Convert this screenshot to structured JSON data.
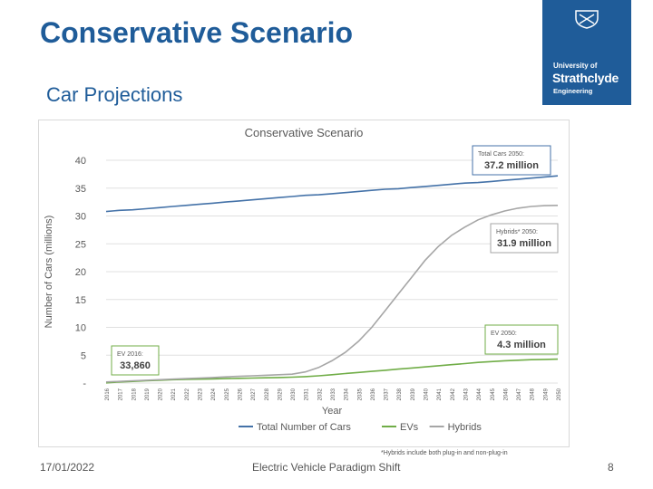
{
  "slide": {
    "title": "Conservative Scenario",
    "subtitle": "Car Projections",
    "footer_date": "17/01/2022",
    "footer_center": "Electric Vehicle Paradigm Shift",
    "page_number": "8",
    "footnote": "*Hybrids include both plug-in and non-plug-in"
  },
  "logo": {
    "line1": "University of",
    "line2": "Strathclyde",
    "line3": "Engineering"
  },
  "colors": {
    "brand": "#1f5c99",
    "total": "#4472a8",
    "evs": "#70ad47",
    "hybrids": "#a6a6a6",
    "annotation_border": "#7f7f7f"
  },
  "chart_data": {
    "type": "line",
    "title": "Conservative Scenario",
    "xlabel": "Year",
    "ylabel": "Number of Cars (millions)",
    "ylim": [
      0,
      40
    ],
    "yticks": [
      "-",
      "5",
      "10",
      "15",
      "20",
      "25",
      "30",
      "35",
      "40"
    ],
    "categories": [
      "2016",
      "2017",
      "2018",
      "2019",
      "2020",
      "2021",
      "2022",
      "2023",
      "2024",
      "2025",
      "2026",
      "2027",
      "2028",
      "2029",
      "2030",
      "2031",
      "2032",
      "2033",
      "2034",
      "2035",
      "2036",
      "2037",
      "2038",
      "2039",
      "2040",
      "2041",
      "2042",
      "2043",
      "2044",
      "2045",
      "2046",
      "2047",
      "2048",
      "2049",
      "2050"
    ],
    "series": [
      {
        "name": "Total Number of Cars",
        "color_key": "total",
        "values": [
          30.8,
          31.0,
          31.1,
          31.3,
          31.5,
          31.7,
          31.9,
          32.1,
          32.3,
          32.5,
          32.7,
          32.9,
          33.1,
          33.3,
          33.5,
          33.7,
          33.8,
          34.0,
          34.2,
          34.4,
          34.6,
          34.8,
          34.9,
          35.1,
          35.3,
          35.5,
          35.7,
          35.9,
          36.0,
          36.2,
          36.4,
          36.6,
          36.8,
          37.0,
          37.2
        ]
      },
      {
        "name": "EVs",
        "color_key": "evs",
        "values": [
          0.03,
          0.2,
          0.3,
          0.4,
          0.5,
          0.6,
          0.65,
          0.7,
          0.75,
          0.8,
          0.85,
          0.9,
          0.95,
          1.0,
          1.05,
          1.15,
          1.3,
          1.5,
          1.7,
          1.9,
          2.1,
          2.3,
          2.5,
          2.7,
          2.9,
          3.1,
          3.3,
          3.5,
          3.7,
          3.85,
          4.0,
          4.1,
          4.2,
          4.25,
          4.3
        ]
      },
      {
        "name": "Hybrids",
        "color_key": "hybrids",
        "values": [
          0.2,
          0.3,
          0.4,
          0.5,
          0.6,
          0.7,
          0.8,
          0.9,
          1.0,
          1.1,
          1.2,
          1.3,
          1.4,
          1.5,
          1.6,
          2.0,
          2.8,
          4.0,
          5.5,
          7.5,
          10.0,
          13.0,
          16.0,
          19.0,
          22.0,
          24.5,
          26.5,
          28.0,
          29.3,
          30.2,
          30.9,
          31.4,
          31.7,
          31.85,
          31.9
        ]
      }
    ],
    "legend": [
      "Total Number of Cars",
      "EVs",
      "Hybrids"
    ],
    "legend_position": "bottom",
    "annotations": [
      {
        "label": "Total Cars 2050:",
        "value": "37.2 million",
        "color_key": "total",
        "anchor_index": 34,
        "anchor_value": 37.2
      },
      {
        "label": "Hybrids* 2050:",
        "value": "31.9 million",
        "color_key": "hybrids",
        "anchor_index": 34,
        "anchor_value": 31.9
      },
      {
        "label": "EV 2050:",
        "value": "4.3 million",
        "color_key": "evs",
        "anchor_index": 34,
        "anchor_value": 4.3
      },
      {
        "label": "EV 2016:",
        "value": "33,860",
        "color_key": "evs",
        "anchor_index": 0,
        "anchor_value": 0.03
      }
    ]
  }
}
